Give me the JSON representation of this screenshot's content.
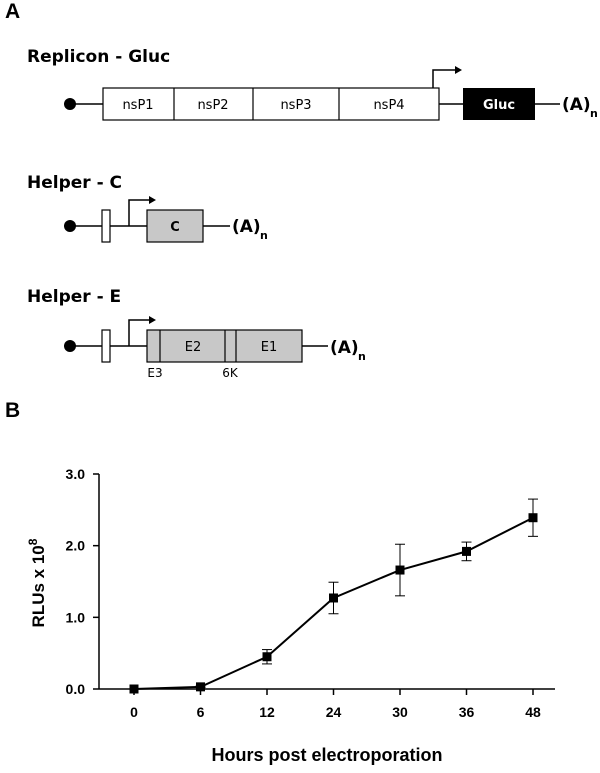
{
  "panel_a": {
    "label": "A",
    "replicon": {
      "title": "Replicon - Gluc",
      "segments": [
        "nsP1",
        "nsP2",
        "nsP3",
        "nsP4"
      ],
      "reporter": "Gluc",
      "polya": "(A)",
      "polya_sub": "n"
    },
    "helper_c": {
      "title": "Helper - C",
      "gene": "C",
      "polya": "(A)",
      "polya_sub": "n"
    },
    "helper_e": {
      "title": "Helper - E",
      "genes": [
        "E2",
        "E1"
      ],
      "junction_labels": [
        "E3",
        "6K"
      ],
      "polya": "(A)",
      "polya_sub": "n"
    }
  },
  "panel_b": {
    "label": "B",
    "ylabel_main": "RLUs x 10",
    "ylabel_exp": "8"
  },
  "chart_data": {
    "type": "line",
    "categories": [
      "0",
      "6",
      "12",
      "24",
      "30",
      "36",
      "48"
    ],
    "values": [
      0.0,
      0.03,
      0.45,
      1.27,
      1.66,
      1.92,
      2.39
    ],
    "error": [
      0.0,
      0.01,
      0.1,
      0.22,
      0.36,
      0.13,
      0.26
    ],
    "xlabel": "Hours post electroporation",
    "ylabel": "RLUs x 10^8",
    "ylim": [
      0,
      3.0
    ],
    "yticks": [
      "0.0",
      "1.0",
      "2.0",
      "3.0"
    ],
    "marker": "square",
    "grid": false,
    "legend": "none",
    "colors": {
      "line": "#000000",
      "gene_fill": "#c8c8c8",
      "reporter_fill": "#000000"
    }
  }
}
